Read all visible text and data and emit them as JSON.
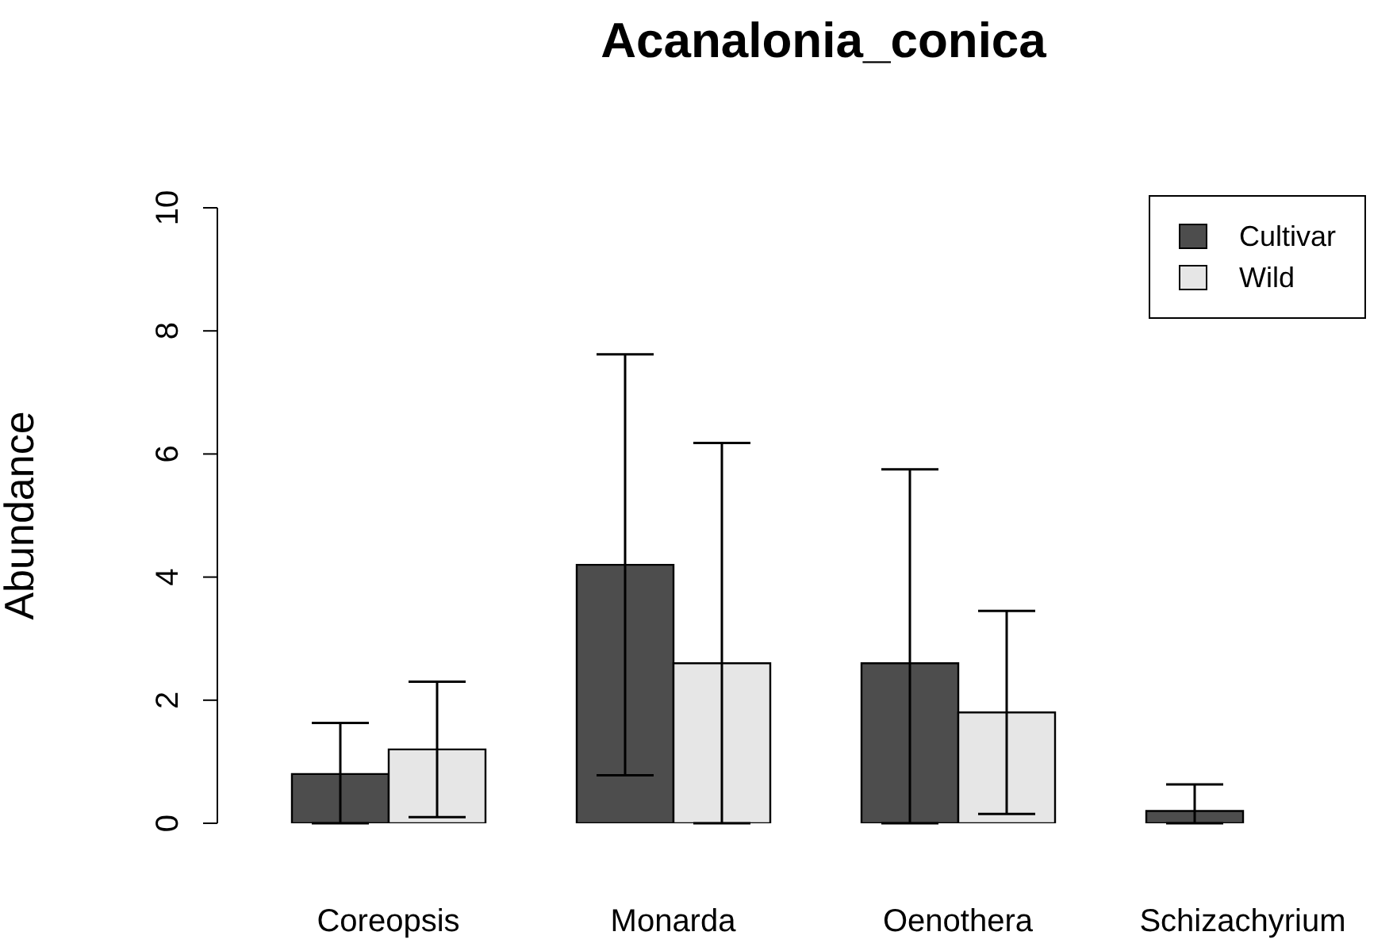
{
  "chart_data": {
    "type": "bar",
    "title": "Acanalonia_conica",
    "ylabel": "Abundance",
    "categories": [
      "Coreopsis",
      "Monarda",
      "Oenothera",
      "Schizachyrium"
    ],
    "series": [
      {
        "name": "Cultivar",
        "color": "#4d4d4d",
        "values": [
          0.8,
          4.2,
          2.6,
          0.2
        ],
        "errors": [
          [
            0,
            1.63
          ],
          [
            0.78,
            7.62
          ],
          [
            0,
            5.75
          ],
          [
            0,
            0.63
          ]
        ]
      },
      {
        "name": "Wild",
        "color": "#e6e6e6",
        "values": [
          1.2,
          2.6,
          1.8,
          0
        ],
        "errors": [
          [
            0.1,
            2.3
          ],
          [
            0,
            6.18
          ],
          [
            0.15,
            3.45
          ],
          null
        ]
      }
    ],
    "ylim": [
      0,
      10
    ],
    "yticks": [
      0,
      2,
      4,
      6,
      8,
      10
    ],
    "grid": false,
    "legend": "top right"
  }
}
